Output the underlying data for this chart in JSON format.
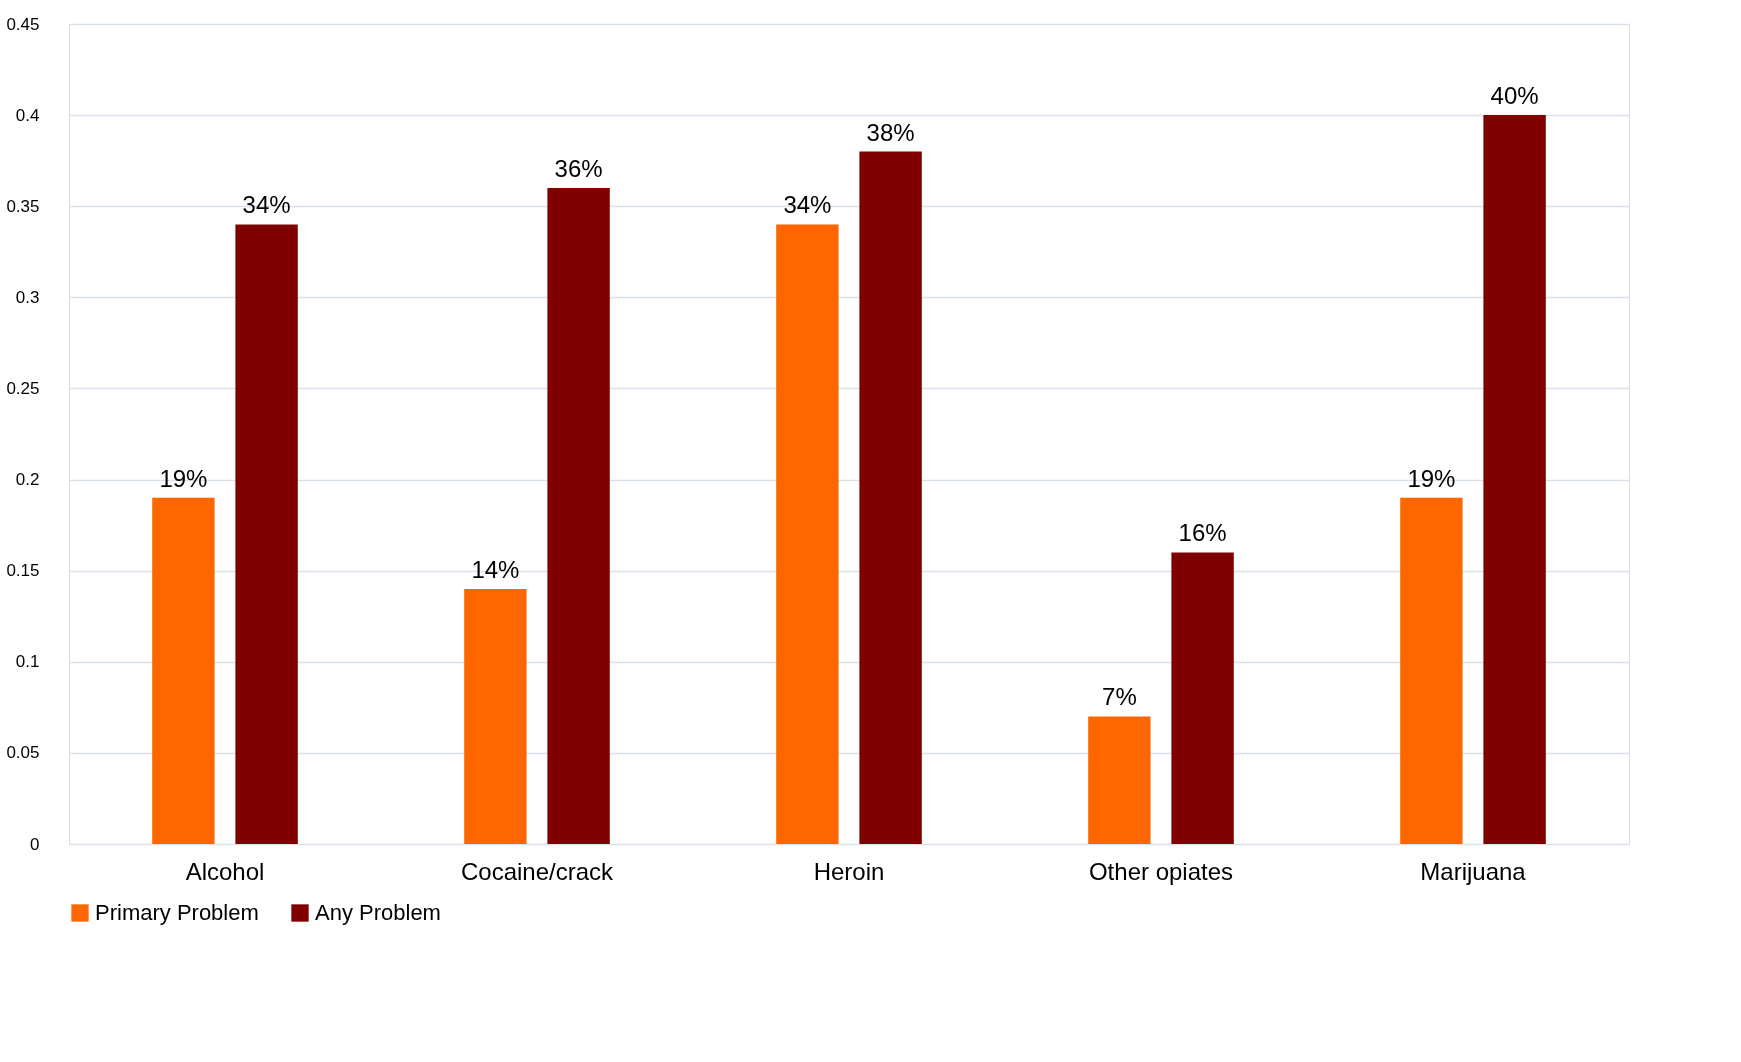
{
  "chart_data": {
    "type": "bar",
    "categories": [
      "Alcohol",
      "Cocaine/crack",
      "Heroin",
      "Other opiates",
      "Marijuana"
    ],
    "series": [
      {
        "name": "Primary Problem",
        "color": "#ff6600",
        "values": [
          0.19,
          0.14,
          0.34,
          0.07,
          0.19
        ],
        "value_labels": [
          "19%",
          "14%",
          "34%",
          "7%",
          "19%"
        ]
      },
      {
        "name": "Any Problem",
        "color": "#800000",
        "values": [
          0.34,
          0.36,
          0.38,
          0.16,
          0.4
        ],
        "value_labels": [
          "34%",
          "36%",
          "38%",
          "16%",
          "40%"
        ]
      }
    ],
    "ylim": [
      0,
      0.45
    ],
    "yticks": [
      0,
      0.05,
      0.1,
      0.15,
      0.2,
      0.25,
      0.3,
      0.35,
      0.4,
      0.45
    ],
    "grid": "y",
    "legend": "bottom"
  }
}
